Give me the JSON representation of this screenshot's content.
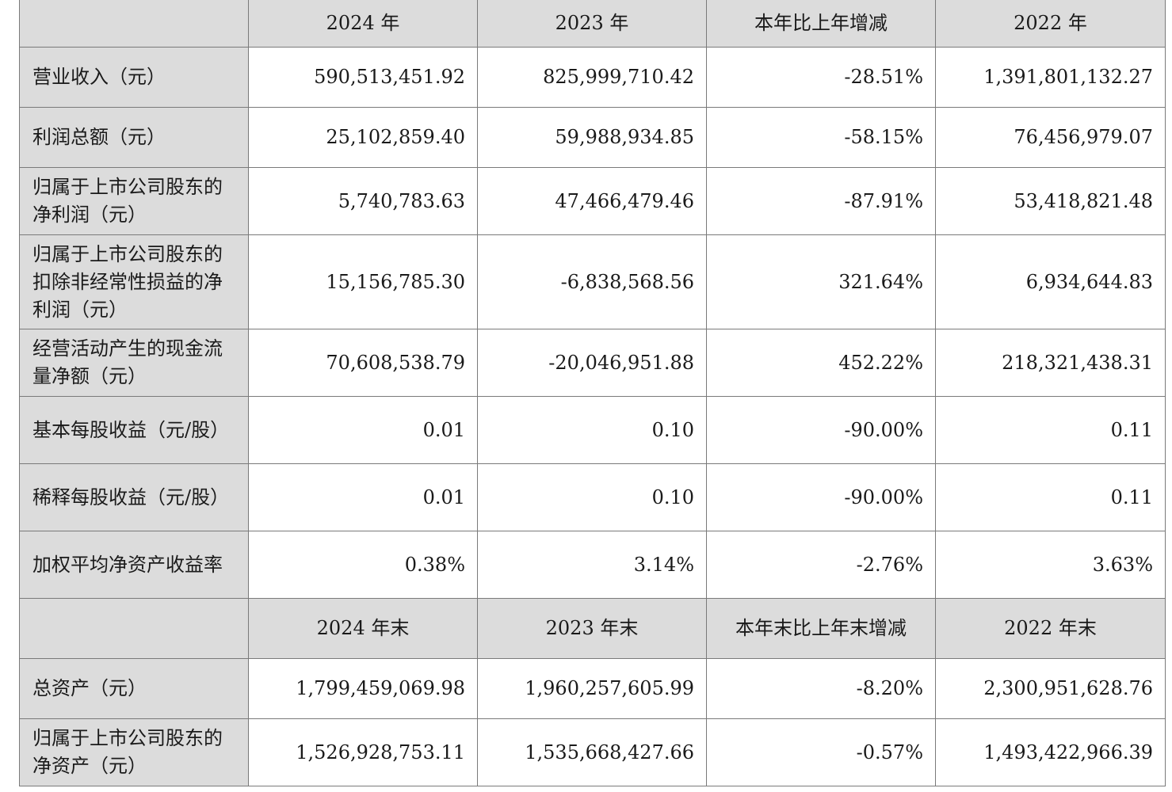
{
  "header_period": {
    "blank": "",
    "col1": "2024 年",
    "col2": "2023 年",
    "col3": "本年比上年增减",
    "col4": "2022 年"
  },
  "period_rows": [
    {
      "label": "营业收入（元）",
      "v2024": "590,513,451.92",
      "v2023": "825,999,710.42",
      "change": "-28.51%",
      "v2022": "1,391,801,132.27"
    },
    {
      "label": "利润总额（元）",
      "v2024": "25,102,859.40",
      "v2023": "59,988,934.85",
      "change": "-58.15%",
      "v2022": "76,456,979.07"
    },
    {
      "label": "归属于上市公司股东的净利润（元）",
      "v2024": "5,740,783.63",
      "v2023": "47,466,479.46",
      "change": "-87.91%",
      "v2022": "53,418,821.48"
    },
    {
      "label": "归属于上市公司股东的扣除非经常性损益的净利润（元）",
      "v2024": "15,156,785.30",
      "v2023": "-6,838,568.56",
      "change": "321.64%",
      "v2022": "6,934,644.83"
    },
    {
      "label": "经营活动产生的现金流量净额（元）",
      "v2024": "70,608,538.79",
      "v2023": "-20,046,951.88",
      "change": "452.22%",
      "v2022": "218,321,438.31"
    },
    {
      "label": "基本每股收益（元/股）",
      "v2024": "0.01",
      "v2023": "0.10",
      "change": "-90.00%",
      "v2022": "0.11"
    },
    {
      "label": "稀释每股收益（元/股）",
      "v2024": "0.01",
      "v2023": "0.10",
      "change": "-90.00%",
      "v2022": "0.11"
    },
    {
      "label": "加权平均净资产收益率",
      "v2024": "0.38%",
      "v2023": "3.14%",
      "change": "-2.76%",
      "v2022": "3.63%"
    }
  ],
  "header_yearend": {
    "blank": "",
    "col1": "2024 年末",
    "col2": "2023 年末",
    "col3": "本年末比上年末增减",
    "col4": "2022 年末"
  },
  "yearend_rows": [
    {
      "label": "总资产（元）",
      "v2024": "1,799,459,069.98",
      "v2023": "1,960,257,605.99",
      "change": "-8.20%",
      "v2022": "2,300,951,628.76"
    },
    {
      "label": "归属于上市公司股东的净资产（元）",
      "v2024": "1,526,928,753.11",
      "v2023": "1,535,668,427.66",
      "change": "-0.57%",
      "v2022": "1,493,422,966.39"
    }
  ]
}
